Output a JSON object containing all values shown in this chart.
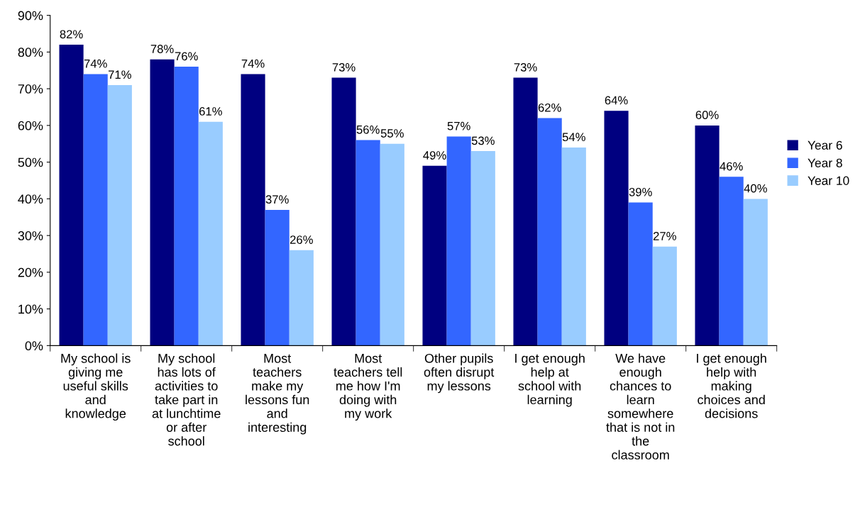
{
  "chart_data": {
    "type": "bar",
    "categories": [
      "My school is\ngiving me\nuseful skills\nand\nknowledge",
      "My school\nhas lots of\nactivities to\ntake part in\nat lunchtime\nor after\nschool",
      "Most\nteachers\nmake my\nlessons fun\nand\ninteresting",
      "Most\nteachers tell\nme how I'm\ndoing with\nmy work",
      "Other pupils\noften disrupt\nmy lessons",
      "I get enough\nhelp at\nschool with\nlearning",
      "We have\nenough\nchances to\nlearn\nsomewhere\nthat is not in\nthe\nclassroom",
      "I get enough\nhelp with\nmaking\nchoices and\ndecisions"
    ],
    "series": [
      {
        "name": "Year 6",
        "color": "#000080",
        "values": [
          82,
          78,
          74,
          73,
          49,
          73,
          64,
          60
        ],
        "value_labels": [
          "82%",
          "78%",
          "74%",
          "73%",
          "49%",
          "73%",
          "64%",
          "60%"
        ]
      },
      {
        "name": "Year 8",
        "color": "#3366ff",
        "values": [
          74,
          76,
          37,
          56,
          57,
          62,
          39,
          46
        ],
        "value_labels": [
          "74%",
          "76%",
          "37%",
          "56%",
          "57%",
          "62%",
          "39%",
          "46%"
        ]
      },
      {
        "name": "Year 10",
        "color": "#99ccff",
        "values": [
          71,
          61,
          26,
          55,
          53,
          54,
          27,
          40
        ],
        "value_labels": [
          "71%",
          "61%",
          "26%",
          "55%",
          "53%",
          "54%",
          "27%",
          "40%"
        ]
      }
    ],
    "ylim": [
      0,
      90
    ],
    "yticks": [
      {
        "value": 0,
        "label": "0%"
      },
      {
        "value": 10,
        "label": "10%"
      },
      {
        "value": 20,
        "label": "20%"
      },
      {
        "value": 30,
        "label": "30%"
      },
      {
        "value": 40,
        "label": "40%"
      },
      {
        "value": 50,
        "label": "50%"
      },
      {
        "value": 60,
        "label": "60%"
      },
      {
        "value": 70,
        "label": "70%"
      },
      {
        "value": 80,
        "label": "80%"
      },
      {
        "value": 90,
        "label": "90%"
      }
    ],
    "grid": false,
    "legend": "right"
  }
}
